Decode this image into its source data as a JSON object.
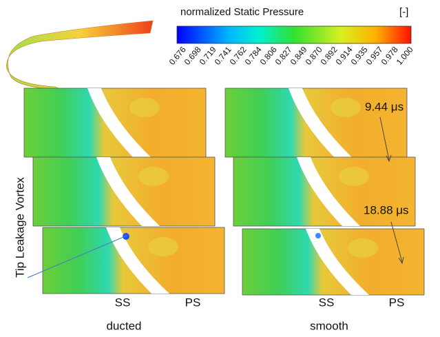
{
  "colorbar": {
    "title": "normalized Static Pressure",
    "unit": "[-]",
    "ticks": [
      "0.676",
      "0.698",
      "0.719",
      "0.741",
      "0.762",
      "0.784",
      "0.806",
      "0.827",
      "0.849",
      "0.870",
      "0.892",
      "0.914",
      "0.935",
      "0.957",
      "0.978",
      "1.000"
    ]
  },
  "labels": {
    "vortex": "Tip Leakage Vortex",
    "time1": "9.44 μs",
    "time2": "18.88 μs"
  },
  "panels": {
    "ducted": {
      "caption": "ducted",
      "ss": "SS",
      "ps": "PS"
    },
    "smooth": {
      "caption": "smooth",
      "ss": "SS",
      "ps": "PS"
    }
  }
}
